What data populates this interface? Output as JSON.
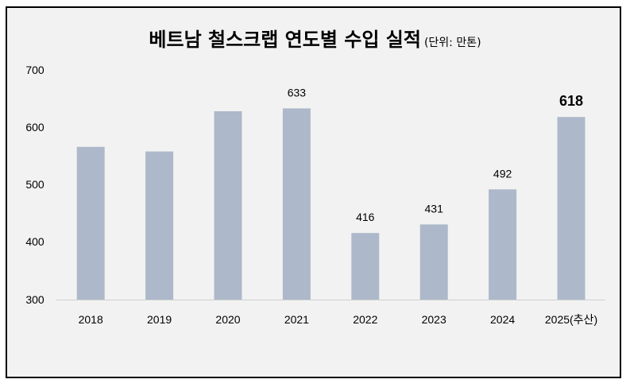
{
  "chart_data": {
    "type": "bar",
    "title": "베트남 철스크랩 연도별 수입 실적",
    "subtitle": "(단위: 만톤)",
    "categories": [
      "2018",
      "2019",
      "2020",
      "2021",
      "2022",
      "2023",
      "2024",
      "2025(추산)"
    ],
    "values": [
      566,
      558,
      628,
      633,
      416,
      431,
      492,
      618
    ],
    "data_labels": [
      "",
      "",
      "",
      "633",
      "416",
      "431",
      "492",
      "618"
    ],
    "highlight_index": 7,
    "ylim": [
      300,
      700
    ],
    "yticks": [
      "700",
      "600",
      "500",
      "400",
      "300"
    ],
    "bar_color": "#adb9ca",
    "grid": false,
    "legend": "none"
  }
}
